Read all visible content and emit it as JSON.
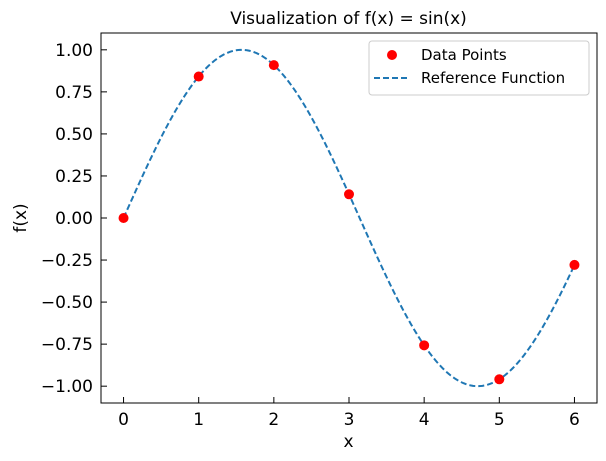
{
  "chart_data": {
    "type": "scatter",
    "title": "Visualization of f(x) = sin(x)",
    "xlabel": "x",
    "ylabel": "f(x)",
    "xlim": [
      -0.3,
      6.3
    ],
    "ylim": [
      -1.1,
      1.1
    ],
    "xticks": [
      0,
      1,
      2,
      3,
      4,
      5,
      6
    ],
    "xtick_labels": [
      "0",
      "1",
      "2",
      "3",
      "4",
      "5",
      "6"
    ],
    "yticks": [
      1.0,
      0.75,
      0.5,
      0.25,
      0.0,
      -0.25,
      -0.5,
      -0.75,
      -1.0
    ],
    "ytick_labels": [
      "1.00",
      "0.75",
      "0.50",
      "0.25",
      "0.00",
      "−0.25",
      "−0.50",
      "−0.75",
      "−1.00"
    ],
    "grid": false,
    "legend_position": "top-right",
    "series": [
      {
        "name": "Data Points",
        "kind": "scatter",
        "color": "#ff0000",
        "x": [
          0,
          1,
          2,
          3,
          4,
          5,
          6
        ],
        "y": [
          0.0,
          0.841,
          0.909,
          0.141,
          -0.757,
          -0.959,
          -0.279
        ]
      },
      {
        "name": "Reference Function",
        "kind": "line",
        "style": "dashed",
        "color": "#1f77b4",
        "function": "sin",
        "x_range": [
          0,
          6
        ]
      }
    ]
  }
}
